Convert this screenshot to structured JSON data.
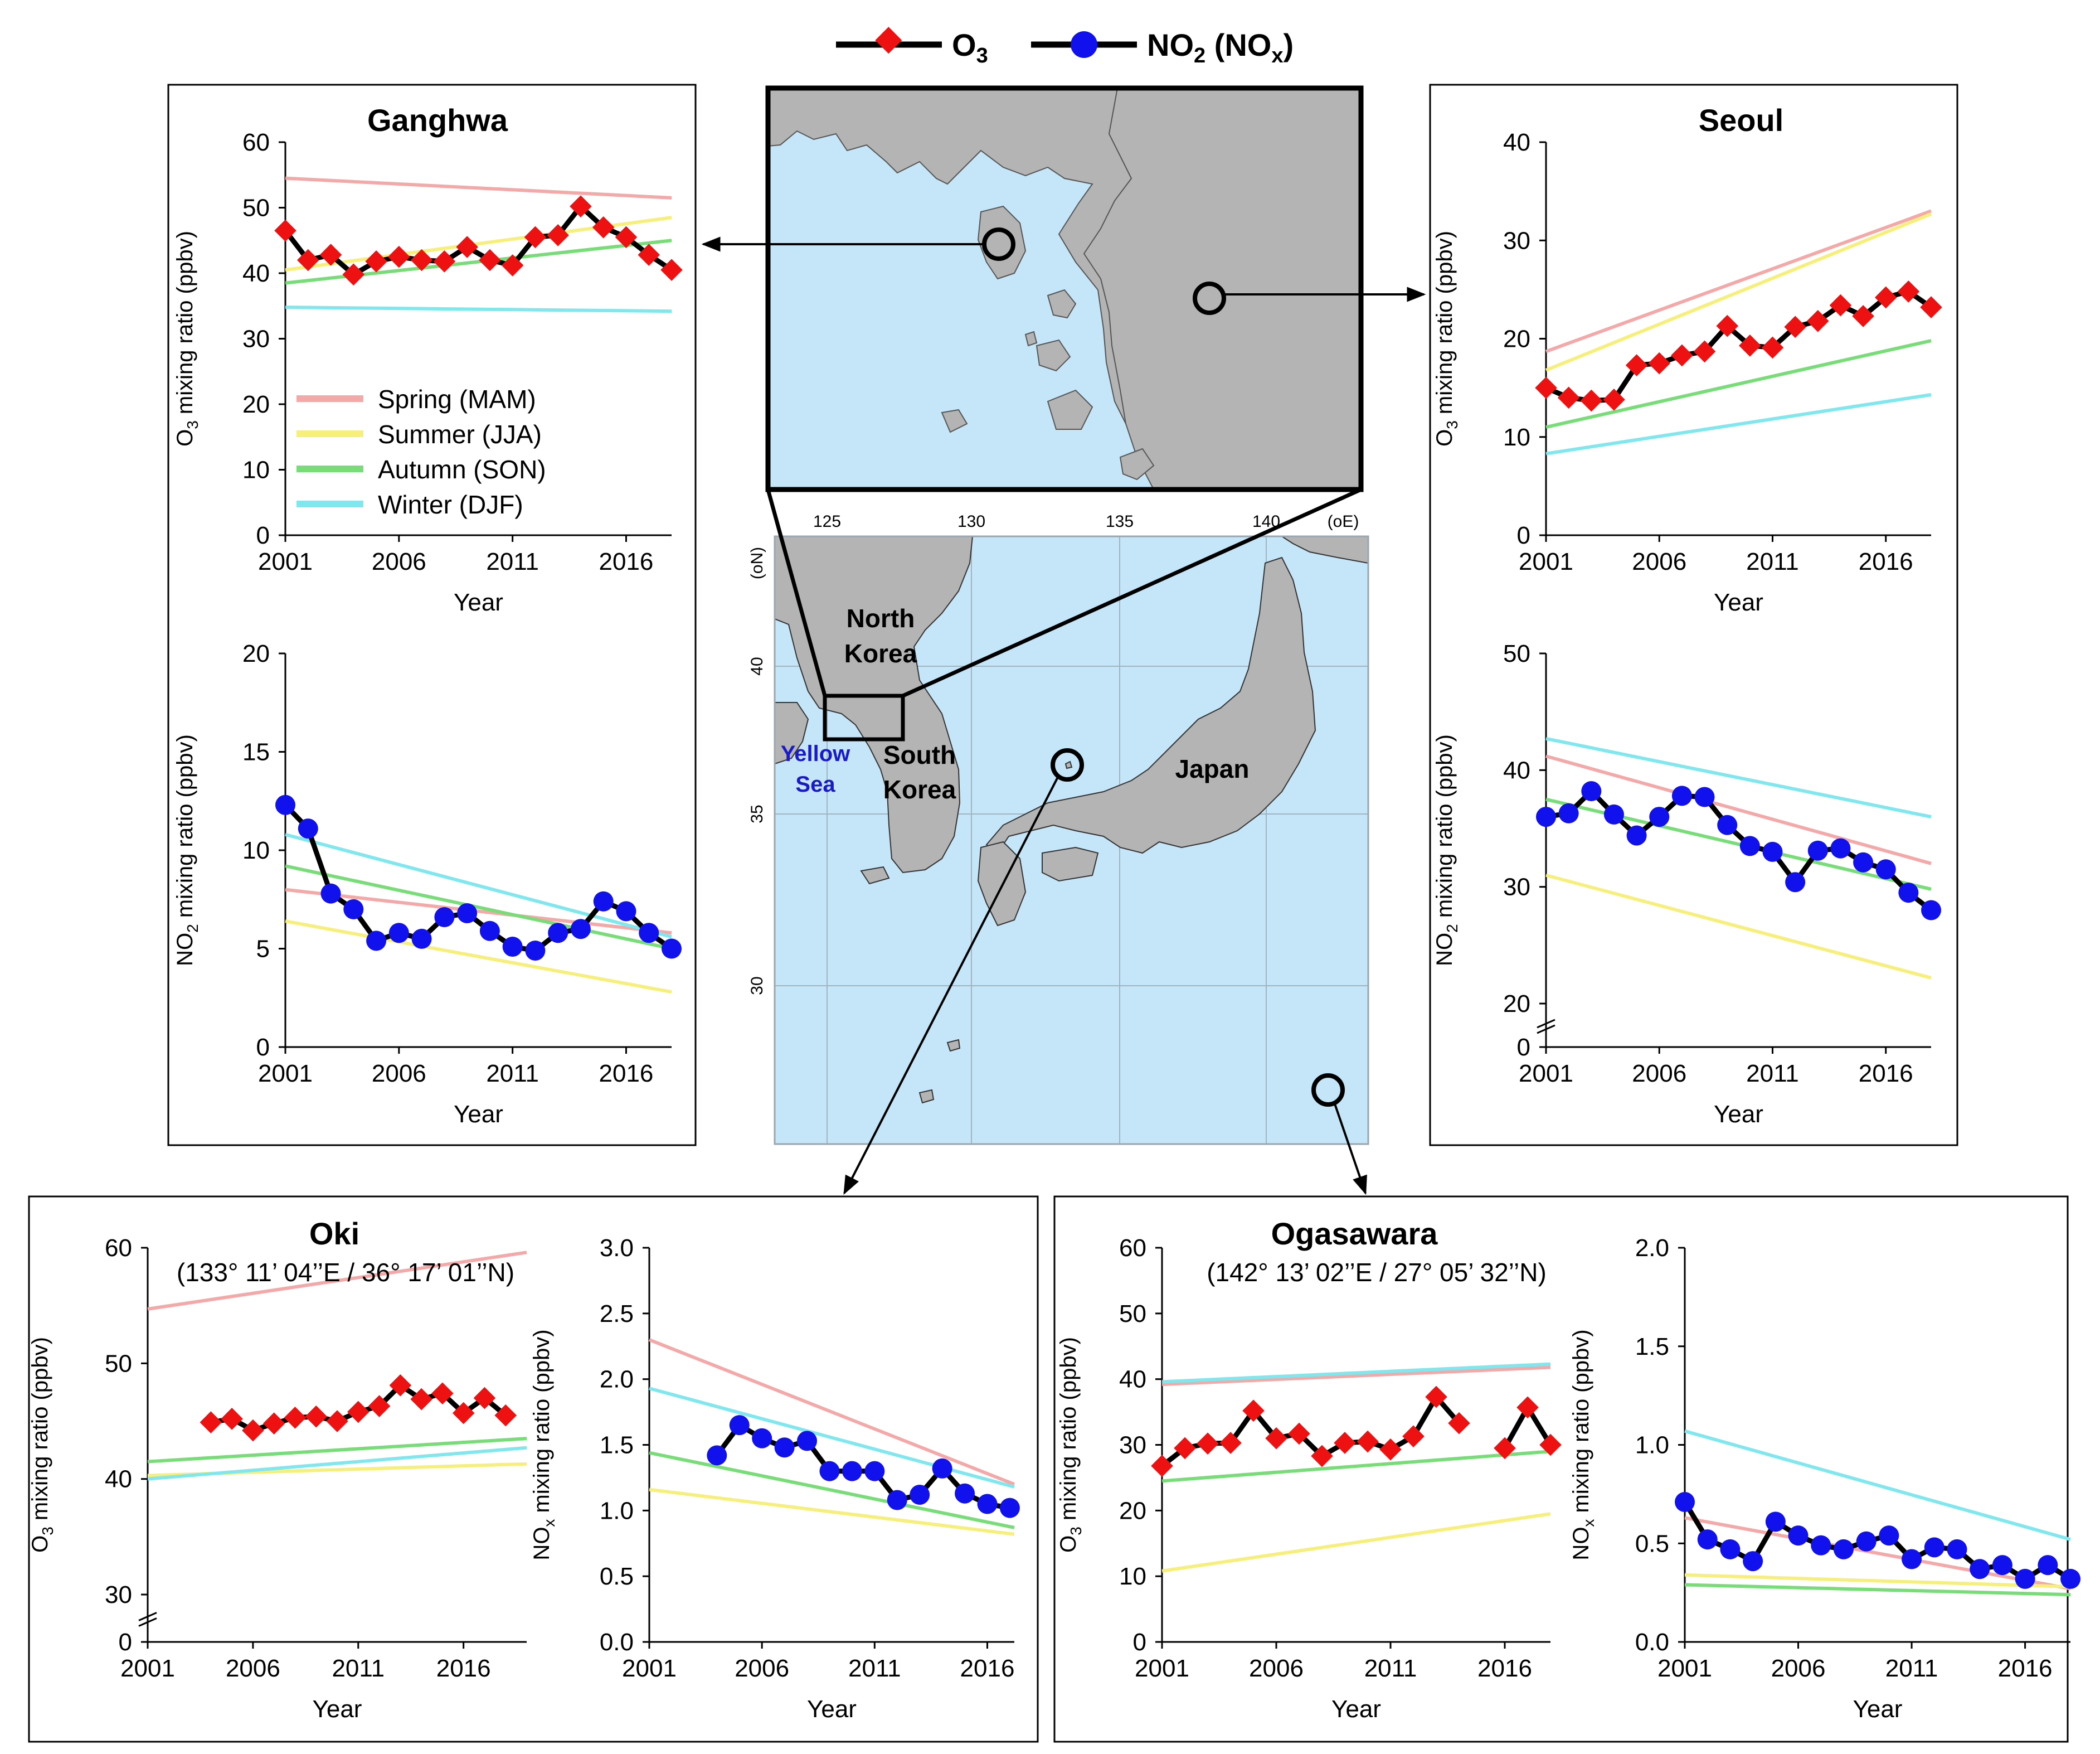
{
  "colors": {
    "spring": "#f4a8a8",
    "summer": "#f6f07a",
    "autumn": "#77dd77",
    "winter": "#7fe8ee",
    "o3_marker": "#ee1111",
    "no2_marker": "#1111ee",
    "data_line": "#000000",
    "sea": "#c5e6f8",
    "land": "#b4b4b4",
    "sea_label": "#1a1ac8"
  },
  "top_legend": {
    "o3_label": "O3",
    "no2_label": "NO2 (NOx)"
  },
  "map": {
    "lon_unit": "(oE)",
    "lat_unit": "(oN)",
    "lon_ticks": [
      "125",
      "130",
      "135",
      "140"
    ],
    "lat_ticks": [
      "40",
      "35",
      "30"
    ],
    "labels": {
      "north_korea": [
        "North",
        "Korea"
      ],
      "south_korea": [
        "South",
        "Korea"
      ],
      "japan": "Japan",
      "yellow_sea": [
        "Yellow",
        "Sea"
      ]
    }
  },
  "stations": {
    "ganghwa": {
      "title": "Ganghwa"
    },
    "seoul": {
      "title": "Seoul"
    },
    "oki": {
      "title": "Oki",
      "coords": "(133° 11’ 04’’E / 36° 17’ 01’’N)"
    },
    "ogasawara": {
      "title": "Ogasawara",
      "coords": "(142° 13’ 02’’E / 27° 05’ 32’’N)"
    }
  },
  "season_legend": [
    "Spring (MAM)",
    "Summer (JJA)",
    "Autumn (SON)",
    "Winter (DJF)"
  ],
  "chart_data": [
    {
      "id": "ganghwa_o3",
      "type": "line",
      "title": "Ganghwa",
      "xlabel": "Year",
      "ylabel": "O3 mixing ratio (ppbv)",
      "xlim": [
        2001,
        2018
      ],
      "ylim": [
        0,
        60
      ],
      "xticks": [
        "2001",
        "2006",
        "2011",
        "2016"
      ],
      "yticks": [
        "0",
        "10",
        "20",
        "30",
        "40",
        "50",
        "60"
      ],
      "legend_placement": "lower-left",
      "trends": [
        {
          "name": "Spring (MAM)",
          "start": 54.5,
          "end": 51.5
        },
        {
          "name": "Summer (JJA)",
          "start": 40.5,
          "end": 48.5
        },
        {
          "name": "Autumn (SON)",
          "start": 38.5,
          "end": 45.0
        },
        {
          "name": "Winter (DJF)",
          "start": 34.8,
          "end": 34.2
        }
      ],
      "series": {
        "name": "O3",
        "x": [
          2001,
          2002,
          2003,
          2004,
          2005,
          2006,
          2007,
          2008,
          2009,
          2010,
          2011,
          2012,
          2013,
          2014,
          2015,
          2016,
          2017,
          2018
        ],
        "values": [
          46.5,
          42.0,
          42.8,
          39.8,
          41.8,
          42.5,
          42.0,
          41.8,
          44.0,
          42.0,
          41.2,
          45.5,
          45.8,
          50.2,
          47.0,
          45.5,
          42.8,
          40.5
        ]
      }
    },
    {
      "id": "ganghwa_no2",
      "type": "line",
      "xlabel": "Year",
      "ylabel": "NO2 mixing ratio (ppbv)",
      "xlim": [
        2001,
        2018
      ],
      "ylim": [
        0,
        20
      ],
      "xticks": [
        "2001",
        "2006",
        "2011",
        "2016"
      ],
      "yticks": [
        "0",
        "5",
        "10",
        "15",
        "20"
      ],
      "trends": [
        {
          "name": "Spring (MAM)",
          "start": 8.0,
          "end": 5.8
        },
        {
          "name": "Summer (JJA)",
          "start": 6.4,
          "end": 2.8
        },
        {
          "name": "Autumn (SON)",
          "start": 9.2,
          "end": 5.0
        },
        {
          "name": "Winter (DJF)",
          "start": 10.8,
          "end": 5.6
        }
      ],
      "series": {
        "name": "NO2",
        "x": [
          2001,
          2002,
          2003,
          2004,
          2005,
          2006,
          2007,
          2008,
          2009,
          2010,
          2011,
          2012,
          2013,
          2014,
          2015,
          2016,
          2017,
          2018
        ],
        "values": [
          12.3,
          11.1,
          7.8,
          7.0,
          5.4,
          5.8,
          5.5,
          6.6,
          6.8,
          5.9,
          5.1,
          4.9,
          5.8,
          6.0,
          7.4,
          6.9,
          5.8,
          5.0
        ]
      }
    },
    {
      "id": "seoul_o3",
      "type": "line",
      "title": "Seoul",
      "xlabel": "Year",
      "ylabel": "O3 mixing ratio (ppbv)",
      "xlim": [
        2001,
        2018
      ],
      "ylim": [
        0,
        40
      ],
      "xticks": [
        "2001",
        "2006",
        "2011",
        "2016"
      ],
      "yticks": [
        "0",
        "10",
        "20",
        "30",
        "40"
      ],
      "trends": [
        {
          "name": "Spring (MAM)",
          "start": 18.7,
          "end": 33.0
        },
        {
          "name": "Summer (JJA)",
          "start": 16.8,
          "end": 32.7
        },
        {
          "name": "Autumn (SON)",
          "start": 11.0,
          "end": 19.8
        },
        {
          "name": "Winter (DJF)",
          "start": 8.3,
          "end": 14.3
        }
      ],
      "series": {
        "name": "O3",
        "x": [
          2001,
          2002,
          2003,
          2004,
          2005,
          2006,
          2007,
          2008,
          2009,
          2010,
          2011,
          2012,
          2013,
          2014,
          2015,
          2016,
          2017,
          2018
        ],
        "values": [
          15.0,
          14.0,
          13.7,
          13.8,
          17.3,
          17.5,
          18.3,
          18.7,
          21.3,
          19.3,
          19.1,
          21.2,
          21.8,
          23.4,
          22.3,
          24.2,
          24.8,
          23.2
        ]
      }
    },
    {
      "id": "seoul_no2",
      "type": "line",
      "xlabel": "Year",
      "ylabel": "NO2 mixing ratio (ppbv)",
      "xlim": [
        2001,
        2018
      ],
      "ylim": [
        20,
        50
      ],
      "axis_break": true,
      "xticks": [
        "2001",
        "2006",
        "2011",
        "2016"
      ],
      "yticks": [
        "0",
        "20",
        "30",
        "40",
        "50"
      ],
      "trends": [
        {
          "name": "Spring (MAM)",
          "start": 41.2,
          "end": 32.0
        },
        {
          "name": "Summer (JJA)",
          "start": 31.0,
          "end": 22.2
        },
        {
          "name": "Autumn (SON)",
          "start": 37.5,
          "end": 29.8
        },
        {
          "name": "Winter (DJF)",
          "start": 42.7,
          "end": 36.0
        }
      ],
      "series": {
        "name": "NO2",
        "x": [
          2001,
          2002,
          2003,
          2004,
          2005,
          2006,
          2007,
          2008,
          2009,
          2010,
          2011,
          2012,
          2013,
          2014,
          2015,
          2016,
          2017,
          2018
        ],
        "values": [
          36.0,
          36.3,
          38.2,
          36.2,
          34.4,
          36.0,
          37.8,
          37.7,
          35.3,
          33.5,
          33.0,
          30.4,
          33.1,
          33.3,
          32.1,
          31.5,
          29.5,
          28.0
        ]
      }
    },
    {
      "id": "oki_o3",
      "type": "line",
      "title": "Oki",
      "xlabel": "Year",
      "ylabel": "O3 mixing ratio (ppbv)",
      "xlim": [
        2001,
        2019
      ],
      "ylim": [
        30,
        60
      ],
      "axis_break": true,
      "xticks": [
        "2001",
        "2006",
        "2011",
        "2016"
      ],
      "yticks": [
        "0",
        "30",
        "40",
        "50",
        "60"
      ],
      "trends": [
        {
          "name": "Spring (MAM)",
          "start": 54.7,
          "end": 59.6
        },
        {
          "name": "Summer (JJA)",
          "start": 40.3,
          "end": 41.3
        },
        {
          "name": "Autumn (SON)",
          "start": 41.5,
          "end": 43.5
        },
        {
          "name": "Winter (DJF)",
          "start": 40.0,
          "end": 42.7
        }
      ],
      "series": {
        "name": "O3",
        "x": [
          2004,
          2005,
          2006,
          2007,
          2008,
          2009,
          2010,
          2011,
          2012,
          2013,
          2014,
          2015,
          2016,
          2017,
          2018
        ],
        "values": [
          44.9,
          45.2,
          44.2,
          44.8,
          45.3,
          45.4,
          45.0,
          45.8,
          46.3,
          48.1,
          46.9,
          47.4,
          45.7,
          47.0,
          45.5
        ]
      }
    },
    {
      "id": "oki_nox",
      "type": "line",
      "xlabel": "Year",
      "ylabel": "NOx mixing ratio (ppbv)",
      "xlim": [
        2001,
        2017.2
      ],
      "ylim": [
        0,
        3.0
      ],
      "xticks": [
        "2001",
        "2006",
        "2011",
        "2016"
      ],
      "yticks": [
        "0.0",
        "0.5",
        "1.0",
        "1.5",
        "2.0",
        "2.5",
        "3.0"
      ],
      "trends": [
        {
          "name": "Spring (MAM)",
          "start": 2.3,
          "end": 1.2
        },
        {
          "name": "Summer (JJA)",
          "start": 1.16,
          "end": 0.82
        },
        {
          "name": "Autumn (SON)",
          "start": 1.44,
          "end": 0.87
        },
        {
          "name": "Winter (DJF)",
          "start": 1.93,
          "end": 1.18
        }
      ],
      "series": {
        "name": "NOx",
        "x": [
          2004,
          2005,
          2006,
          2007,
          2008,
          2009,
          2010,
          2011,
          2012,
          2013,
          2014,
          2015,
          2016,
          2017
        ],
        "values": [
          1.42,
          1.65,
          1.55,
          1.48,
          1.53,
          1.3,
          1.3,
          1.3,
          1.08,
          1.12,
          1.32,
          1.13,
          1.05,
          1.02
        ]
      }
    },
    {
      "id": "ogasawara_o3",
      "type": "line",
      "title": "Ogasawara",
      "xlabel": "Year",
      "ylabel": "O3 mixing ratio (ppbv)",
      "xlim": [
        2001,
        2018
      ],
      "ylim": [
        0,
        60
      ],
      "xticks": [
        "2001",
        "2006",
        "2011",
        "2016"
      ],
      "yticks": [
        "0",
        "10",
        "20",
        "30",
        "40",
        "50",
        "60"
      ],
      "trends": [
        {
          "name": "Spring (MAM)",
          "start": 39.2,
          "end": 41.8
        },
        {
          "name": "Summer (JJA)",
          "start": 10.8,
          "end": 19.5
        },
        {
          "name": "Autumn (SON)",
          "start": 24.5,
          "end": 29.0
        },
        {
          "name": "Winter (DJF)",
          "start": 39.6,
          "end": 42.3
        }
      ],
      "series": {
        "name": "O3",
        "x": [
          2001,
          2002,
          2003,
          2004,
          2005,
          2006,
          2007,
          2008,
          2009,
          2010,
          2011,
          2012,
          2013,
          2014,
          2016,
          2017,
          2018
        ],
        "values": [
          26.8,
          29.5,
          30.2,
          30.3,
          35.2,
          31.0,
          31.7,
          28.3,
          30.3,
          30.5,
          29.3,
          31.3,
          37.3,
          33.3,
          29.5,
          35.7,
          30.0
        ]
      }
    },
    {
      "id": "ogasawara_nox",
      "type": "line",
      "xlabel": "Year",
      "ylabel": "NOx mixing ratio (ppbv)",
      "xlim": [
        2001,
        2018
      ],
      "ylim": [
        0,
        2.0
      ],
      "xticks": [
        "2001",
        "2006",
        "2011",
        "2016"
      ],
      "yticks": [
        "0.0",
        "0.5",
        "1.0",
        "1.5",
        "2.0"
      ],
      "trends": [
        {
          "name": "Spring (MAM)",
          "start": 0.63,
          "end": 0.27
        },
        {
          "name": "Summer (JJA)",
          "start": 0.34,
          "end": 0.28
        },
        {
          "name": "Autumn (SON)",
          "start": 0.29,
          "end": 0.24
        },
        {
          "name": "Winter (DJF)",
          "start": 1.07,
          "end": 0.52
        }
      ],
      "series": {
        "name": "NOx",
        "x": [
          2001,
          2002,
          2003,
          2004,
          2005,
          2006,
          2007,
          2008,
          2009,
          2010,
          2011,
          2012,
          2013,
          2014,
          2015,
          2016,
          2017,
          2018
        ],
        "values": [
          0.71,
          0.52,
          0.47,
          0.41,
          0.61,
          0.54,
          0.49,
          0.47,
          0.51,
          0.54,
          0.42,
          0.48,
          0.47,
          0.37,
          0.39,
          0.32,
          0.39,
          0.32
        ]
      }
    }
  ]
}
